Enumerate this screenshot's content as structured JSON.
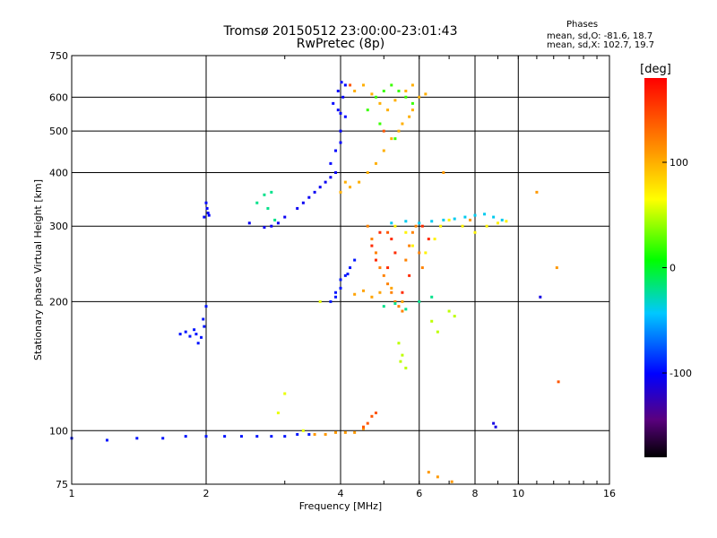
{
  "chart_data": {
    "type": "scatter",
    "title": "Tromsø 20150512 23:00:00-23:01:43",
    "subtitle": "RwPretec (8p)",
    "xlabel": "Frequency [MHz]",
    "ylabel": "Stationary phase Virtual Height [km]",
    "x_scale": "log",
    "y_scale": "log",
    "xlim": [
      1,
      16
    ],
    "ylim": [
      75,
      750
    ],
    "x_ticks": [
      1,
      2,
      4,
      6,
      8,
      10,
      16
    ],
    "x_tick_labels": [
      "1",
      "2",
      "4",
      "6",
      "8",
      "10",
      "16"
    ],
    "y_ticks": [
      75,
      100,
      200,
      300,
      400,
      500,
      600,
      750
    ],
    "y_tick_labels": [
      "75",
      "100",
      "200",
      "300",
      "400",
      "500",
      "600",
      "750"
    ],
    "grid": true,
    "stats": {
      "heading": "Phases",
      "o_mode": "mean, sd,O: -81.6, 18.7",
      "x_mode": "mean, sd,X: 102.7, 19.7"
    },
    "colorbar": {
      "label": "[deg]",
      "range": [
        -180,
        180
      ],
      "ticks": [
        100,
        0,
        -100
      ],
      "tick_labels": [
        "100",
        "0",
        "-100"
      ]
    },
    "series": [
      {
        "x": [
          1.0,
          1.2,
          1.4,
          1.6,
          1.8,
          2.0,
          2.2,
          2.4,
          2.6,
          2.8,
          3.0,
          3.2,
          3.4
        ],
        "y": [
          96,
          95,
          96,
          96,
          97,
          97,
          97,
          97,
          97,
          97,
          97,
          98,
          98
        ],
        "phase": -95
      },
      {
        "x": [
          3.5,
          3.7,
          3.9,
          4.1,
          4.3,
          4.5
        ],
        "y": [
          98,
          98,
          99,
          99,
          99,
          101
        ],
        "phase": 110
      },
      {
        "x": [
          2.0,
          2.01,
          2.02,
          1.98,
          2.03
        ],
        "y": [
          340,
          330,
          322,
          315,
          318
        ],
        "phase": -100
      },
      {
        "x": [
          1.75,
          1.8,
          1.84,
          1.88,
          1.9,
          1.92,
          1.95,
          1.98,
          2.0,
          1.97
        ],
        "y": [
          168,
          170,
          166,
          172,
          168,
          160,
          165,
          175,
          195,
          182
        ],
        "phase": -95
      },
      {
        "x": [
          2.5,
          2.7,
          2.8,
          2.9,
          3.0,
          3.2,
          3.4,
          3.6,
          3.8,
          3.9,
          3.7,
          3.5,
          3.3
        ],
        "y": [
          305,
          298,
          300,
          305,
          315,
          330,
          350,
          370,
          390,
          400,
          380,
          360,
          340
        ],
        "phase": -105
      },
      {
        "x": [
          2.6,
          2.7,
          2.8,
          2.75,
          2.85
        ],
        "y": [
          340,
          355,
          360,
          330,
          310
        ],
        "phase": -20
      },
      {
        "x": [
          3.8,
          3.9,
          4.0,
          4.0,
          4.05,
          4.1,
          3.95,
          3.85,
          4.1,
          4.0,
          3.95,
          4.02
        ],
        "y": [
          420,
          450,
          500,
          550,
          600,
          640,
          620,
          580,
          540,
          470,
          560,
          650
        ],
        "phase": -100
      },
      {
        "x": [
          4.0,
          4.2,
          4.4,
          4.6,
          4.8,
          5.0,
          5.2,
          5.5,
          5.8,
          6.0,
          4.3,
          4.5,
          4.7,
          4.9,
          5.1,
          5.3,
          5.6,
          5.8,
          6.2,
          4.1,
          5.4,
          5.7
        ],
        "y": [
          360,
          370,
          380,
          400,
          420,
          450,
          480,
          520,
          560,
          600,
          620,
          640,
          610,
          580,
          560,
          590,
          620,
          640,
          610,
          380,
          500,
          540
        ],
        "phase": 100
      },
      {
        "x": [
          4.6,
          4.8,
          5.0,
          5.2,
          5.4,
          5.6,
          5.8,
          4.9,
          5.3
        ],
        "y": [
          560,
          600,
          620,
          640,
          620,
          600,
          580,
          520,
          480
        ],
        "phase": 20
      },
      {
        "x": [
          4.6,
          4.7,
          4.8,
          4.9,
          5.0,
          5.1,
          5.2,
          5.3,
          5.4,
          5.5,
          5.6,
          5.7,
          5.8,
          5.9,
          6.0,
          6.1
        ],
        "y": [
          300,
          280,
          260,
          240,
          230,
          220,
          210,
          200,
          195,
          190,
          250,
          270,
          290,
          300,
          260,
          240
        ],
        "phase": 120
      },
      {
        "x": [
          5.2,
          5.6,
          6.0,
          6.4,
          6.8,
          7.2,
          7.6,
          8.0,
          8.4,
          8.8,
          9.2
        ],
        "y": [
          305,
          308,
          305,
          308,
          310,
          312,
          315,
          318,
          320,
          315,
          310
        ],
        "phase": -40
      },
      {
        "x": [
          3.8,
          3.9,
          4.0,
          4.1,
          4.2,
          4.3,
          4.0,
          3.9,
          4.15
        ],
        "y": [
          200,
          205,
          215,
          230,
          240,
          250,
          225,
          210,
          232
        ],
        "phase": -95
      },
      {
        "x": [
          4.3,
          4.5,
          4.7,
          4.9,
          5.2,
          5.5
        ],
        "y": [
          208,
          212,
          205,
          210,
          215,
          200
        ],
        "phase": 105
      },
      {
        "x": [
          5.0,
          5.3,
          5.6,
          6.0,
          6.4
        ],
        "y": [
          195,
          198,
          192,
          200,
          205
        ],
        "phase": -20
      },
      {
        "x": [
          5.4,
          5.5,
          5.6,
          5.45,
          6.4,
          6.6,
          7.0,
          7.2
        ],
        "y": [
          160,
          150,
          140,
          145,
          180,
          170,
          190,
          185
        ],
        "phase": 50
      },
      {
        "x": [
          5.3,
          5.6,
          5.8,
          6.2,
          6.5,
          6.7,
          7.0,
          7.5,
          8.0,
          8.5,
          9.0,
          9.4
        ],
        "y": [
          300,
          290,
          270,
          260,
          280,
          300,
          310,
          300,
          290,
          300,
          305,
          308
        ],
        "phase": 70
      },
      {
        "x": [
          3.0,
          2.9,
          3.3,
          3.6
        ],
        "y": [
          122,
          110,
          100,
          200
        ],
        "phase": 60
      },
      {
        "x": [
          6.3,
          6.6,
          7.1,
          7.8,
          11.0,
          12.2,
          6.8
        ],
        "y": [
          80,
          78,
          76,
          310,
          360,
          240,
          400
        ],
        "phase": 110
      },
      {
        "x": [
          8.8,
          8.9,
          11.2
        ],
        "y": [
          104,
          102,
          205
        ],
        "phase": -110
      },
      {
        "x": [
          4.5,
          4.6,
          4.7,
          4.8,
          5.1
        ],
        "y": [
          102,
          104,
          108,
          110,
          290
        ],
        "phase": 140
      },
      {
        "x": [
          4.7,
          4.8,
          4.9,
          5.1,
          5.2,
          5.3,
          5.5,
          5.7,
          6.1,
          6.3
        ],
        "y": [
          270,
          250,
          290,
          240,
          280,
          260,
          210,
          230,
          300,
          280
        ],
        "phase": 160
      },
      {
        "x": [
          12.3,
          4.2,
          5.0
        ],
        "y": [
          130,
          640,
          500
        ],
        "phase": 140
      }
    ]
  }
}
